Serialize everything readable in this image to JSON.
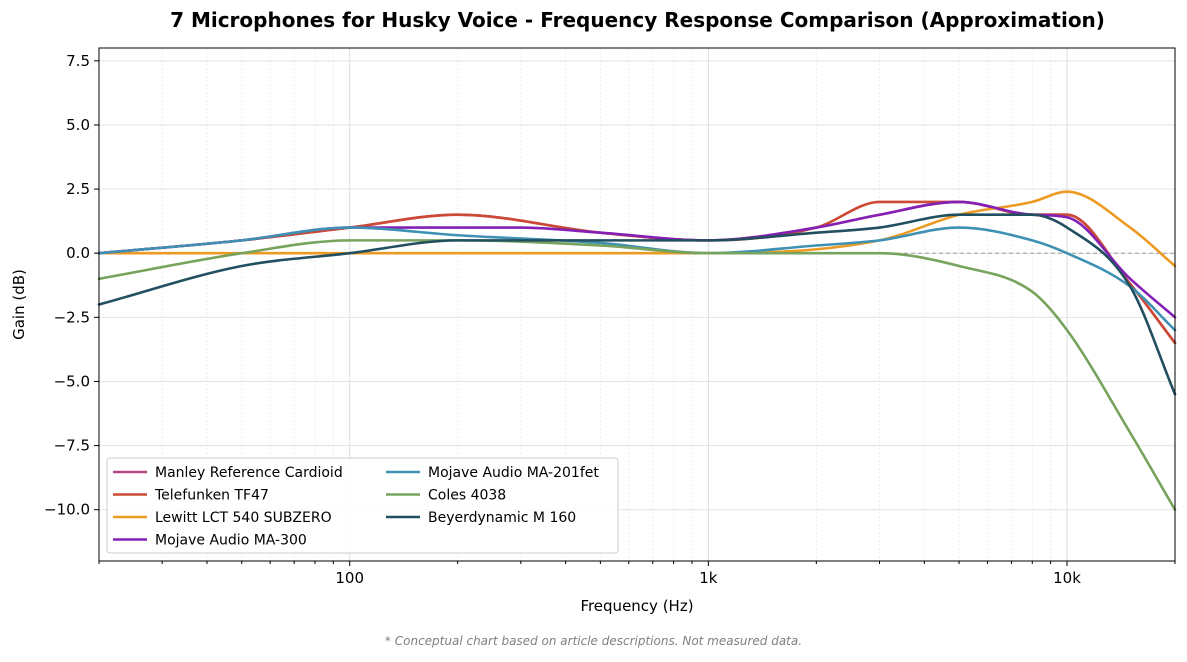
{
  "chart_data": {
    "type": "line",
    "title": "7 Microphones for Husky Voice - Frequency Response Comparison (Approximation)",
    "xlabel": "Frequency (Hz)",
    "ylabel": "Gain (dB)",
    "x_scale": "log",
    "xlim": [
      20,
      20000
    ],
    "ylim": [
      -12,
      8
    ],
    "x_ticks": [
      {
        "value": 100,
        "label": "100"
      },
      {
        "value": 1000,
        "label": "1k"
      },
      {
        "value": 10000,
        "label": "10k"
      }
    ],
    "y_ticks": [
      {
        "value": 7.5,
        "label": "7.5"
      },
      {
        "value": 5,
        "label": "5.0"
      },
      {
        "value": 2.5,
        "label": "2.5"
      },
      {
        "value": 0,
        "label": "0.0"
      },
      {
        "value": -2.5,
        "label": "−2.5"
      },
      {
        "value": -5,
        "label": "−5.0"
      },
      {
        "value": -7.5,
        "label": "−7.5"
      },
      {
        "value": -10,
        "label": "−10.0"
      }
    ],
    "grid": true,
    "reference_line": 0,
    "legend_position": "lower-left",
    "legend_columns": 2,
    "series": [
      {
        "name": "Manley Reference Cardioid",
        "color": "#b3457f",
        "points": [
          [
            20,
            0
          ],
          [
            50,
            0.5
          ],
          [
            100,
            1
          ],
          [
            200,
            1.5
          ],
          [
            500,
            0.8
          ],
          [
            1000,
            0.5
          ],
          [
            2000,
            1
          ],
          [
            3000,
            1.5
          ],
          [
            5000,
            2
          ],
          [
            8000,
            1.5
          ],
          [
            10000,
            1.5
          ],
          [
            15000,
            -1.2
          ],
          [
            20000,
            -3.5
          ]
        ]
      },
      {
        "name": "Telefunken TF47",
        "color": "#cc4a33",
        "points": [
          [
            20,
            0
          ],
          [
            50,
            0.5
          ],
          [
            100,
            1
          ],
          [
            200,
            1.5
          ],
          [
            500,
            0.8
          ],
          [
            1000,
            0.5
          ],
          [
            2000,
            1
          ],
          [
            3000,
            2
          ],
          [
            5000,
            2
          ],
          [
            8000,
            1.5
          ],
          [
            10000,
            1.5
          ],
          [
            15000,
            -1.2
          ],
          [
            20000,
            -3.5
          ]
        ]
      },
      {
        "name": "Lewitt LCT 540 SUBZERO",
        "color": "#ed9a22",
        "points": [
          [
            20,
            0
          ],
          [
            100,
            0
          ],
          [
            1000,
            0
          ],
          [
            3000,
            0.5
          ],
          [
            5000,
            1.5
          ],
          [
            8000,
            2
          ],
          [
            10000,
            2.4
          ],
          [
            15000,
            1
          ],
          [
            20000,
            -0.5
          ]
        ]
      },
      {
        "name": "Mojave Audio MA-300",
        "color": "#8420b5",
        "points": [
          [
            20,
            0
          ],
          [
            50,
            0.5
          ],
          [
            100,
            1
          ],
          [
            200,
            1
          ],
          [
            300,
            1
          ],
          [
            500,
            0.8
          ],
          [
            1000,
            0.5
          ],
          [
            2000,
            1
          ],
          [
            3000,
            1.5
          ],
          [
            5000,
            2
          ],
          [
            8000,
            1.5
          ],
          [
            10000,
            1.4
          ],
          [
            15000,
            -1
          ],
          [
            20000,
            -2.5
          ]
        ]
      },
      {
        "name": "Mojave Audio MA-201fet",
        "color": "#3f91b4",
        "points": [
          [
            20,
            0
          ],
          [
            50,
            0.5
          ],
          [
            100,
            1
          ],
          [
            200,
            0.7
          ],
          [
            500,
            0.4
          ],
          [
            1000,
            0
          ],
          [
            2000,
            0.3
          ],
          [
            3000,
            0.5
          ],
          [
            5000,
            1
          ],
          [
            8000,
            0.5
          ],
          [
            10000,
            0
          ],
          [
            15000,
            -1.3
          ],
          [
            20000,
            -3
          ]
        ]
      },
      {
        "name": "Coles 4038",
        "color": "#77a35d",
        "points": [
          [
            20,
            -1
          ],
          [
            50,
            0
          ],
          [
            100,
            0.5
          ],
          [
            200,
            0.5
          ],
          [
            500,
            0.3
          ],
          [
            1000,
            0
          ],
          [
            2000,
            0
          ],
          [
            3000,
            0
          ],
          [
            5000,
            -0.5
          ],
          [
            8000,
            -1.5
          ],
          [
            10000,
            -3
          ],
          [
            15000,
            -7
          ],
          [
            20000,
            -10
          ]
        ]
      },
      {
        "name": "Beyerdynamic M 160",
        "color": "#224f5f",
        "points": [
          [
            20,
            -2
          ],
          [
            50,
            -0.5
          ],
          [
            100,
            0
          ],
          [
            200,
            0.5
          ],
          [
            500,
            0.5
          ],
          [
            1000,
            0.5
          ],
          [
            2000,
            0.8
          ],
          [
            3000,
            1
          ],
          [
            5000,
            1.5
          ],
          [
            8000,
            1.5
          ],
          [
            10000,
            1
          ],
          [
            15000,
            -1.3
          ],
          [
            20000,
            -5.5
          ]
        ]
      }
    ]
  },
  "footnote": "* Conceptual chart based on article descriptions. Not measured data."
}
